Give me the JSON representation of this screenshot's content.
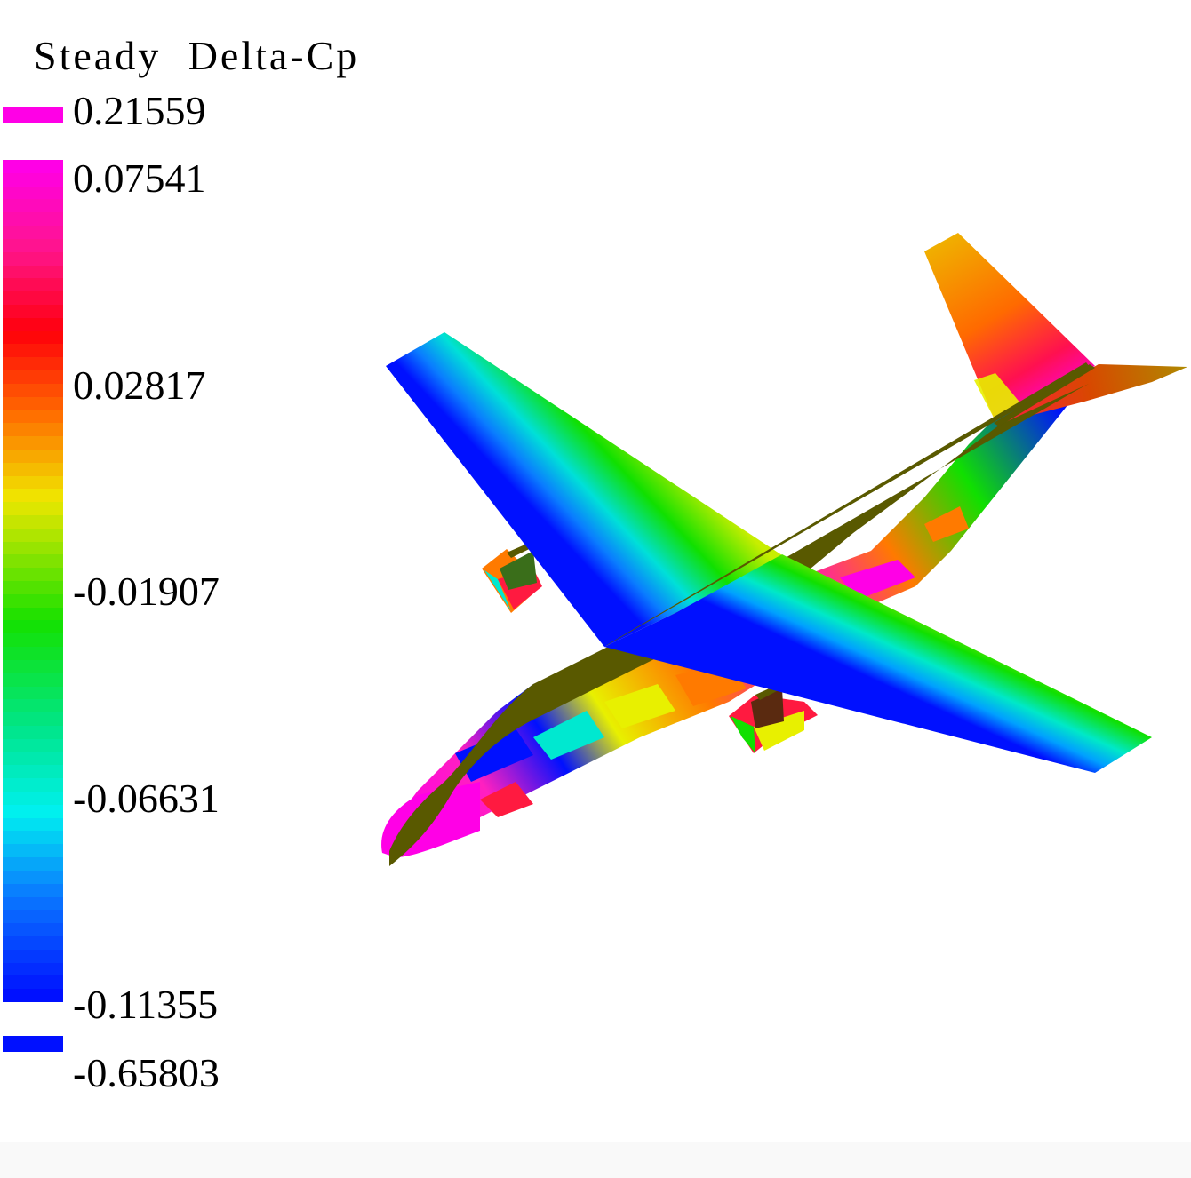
{
  "legend": {
    "title": "Steady Delta-Cp",
    "overflow_max": "0.21559",
    "ticks": [
      "0.07541",
      "0.02817",
      "-0.01907",
      "-0.06631",
      "-0.11355"
    ],
    "overflow_min": "-0.65803",
    "overflow_max_color": "#ff00e6",
    "overflow_min_color": "#0010ff"
  },
  "colors": {
    "fuselage_top": "#595900",
    "fin_dark": "#3a6e1a",
    "magenta": "#ff00e6",
    "red": "#ff1a00",
    "orange": "#ff7a00",
    "yellow": "#e8f000",
    "green": "#10e000",
    "cyan": "#00e8d0",
    "blue": "#0010ff"
  }
}
